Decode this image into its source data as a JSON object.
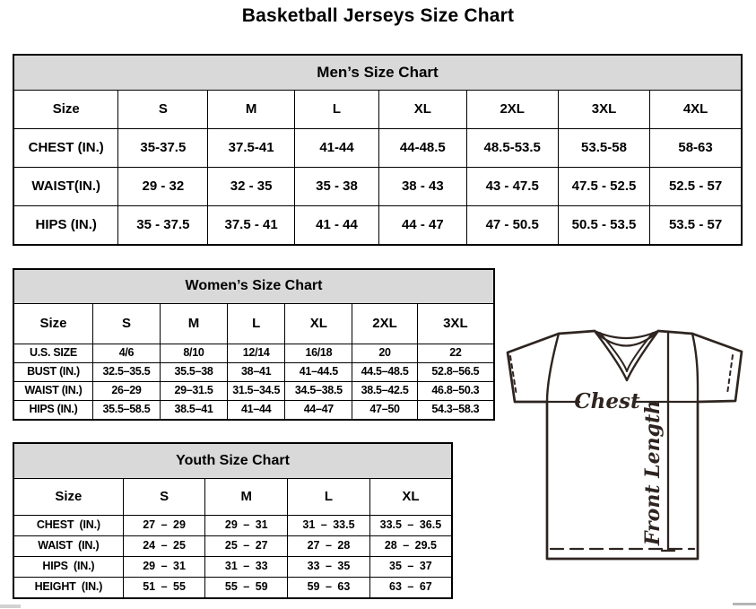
{
  "page": {
    "title": "Basketball Jerseys Size Chart"
  },
  "mens": {
    "title": "Men’s Size Chart",
    "columns": [
      "Size",
      "S",
      "M",
      "L",
      "XL",
      "2XL",
      "3XL",
      "4XL"
    ],
    "rows": [
      {
        "label": "CHEST (IN.)",
        "values": [
          "35-37.5",
          "37.5-41",
          "41-44",
          "44-48.5",
          "48.5-53.5",
          "53.5-58",
          "58-63"
        ]
      },
      {
        "label": "WAIST(IN.)",
        "values": [
          "29 - 32",
          "32 - 35",
          "35 - 38",
          "38 - 43",
          "43 - 47.5",
          "47.5 - 52.5",
          "52.5 - 57"
        ]
      },
      {
        "label": "HIPS (IN.)",
        "values": [
          "35 - 37.5",
          "37.5 - 41",
          "41 - 44",
          "44 - 47",
          "47 - 50.5",
          "50.5 - 53.5",
          "53.5 - 57"
        ]
      }
    ]
  },
  "womens": {
    "title": "Women’s Size Chart",
    "columns": [
      "Size",
      "S",
      "M",
      "L",
      "XL",
      "2XL",
      "3XL"
    ],
    "rows": [
      {
        "label": "U.S. SIZE",
        "values": [
          "4/6",
          "8/10",
          "12/14",
          "16/18",
          "20",
          "22"
        ]
      },
      {
        "label": "BUST (IN.)",
        "values": [
          "32.5–35.5",
          "35.5–38",
          "38–41",
          "41–44.5",
          "44.5–48.5",
          "52.8–56.5"
        ]
      },
      {
        "label": "WAIST (IN.)",
        "values": [
          "26–29",
          "29–31.5",
          "31.5–34.5",
          "34.5–38.5",
          "38.5–42.5",
          "46.8–50.3"
        ]
      },
      {
        "label": "HIPS (IN.)",
        "values": [
          "35.5–58.5",
          "38.5–41",
          "41–44",
          "44–47",
          "47–50",
          "54.3–58.3"
        ]
      }
    ]
  },
  "youth": {
    "title": "Youth Size Chart",
    "columns": [
      "Size",
      "S",
      "M",
      "L",
      "XL"
    ],
    "rows": [
      {
        "label": "CHEST (IN.)",
        "values": [
          "27 – 29",
          "29 – 31",
          "31 – 33.5",
          "33.5 – 36.5"
        ]
      },
      {
        "label": "WAIST (IN.)",
        "values": [
          "24 – 25",
          "25 – 27",
          "27 – 28",
          "28 – 29.5"
        ]
      },
      {
        "label": "HIPS (IN.)",
        "values": [
          "29 – 31",
          "31 – 33",
          "33 – 35",
          "35 – 37"
        ]
      },
      {
        "label": "HEIGHT (IN.)",
        "values": [
          "51 – 55",
          "55 – 59",
          "59 – 63",
          "63 – 67"
        ]
      }
    ]
  },
  "diagram": {
    "chest_label": "Chest",
    "front_length_label": "Front Length"
  },
  "colors": {
    "header_bg": "#d9d9d9",
    "border": "#000000",
    "jersey_line": "#2e2420"
  }
}
